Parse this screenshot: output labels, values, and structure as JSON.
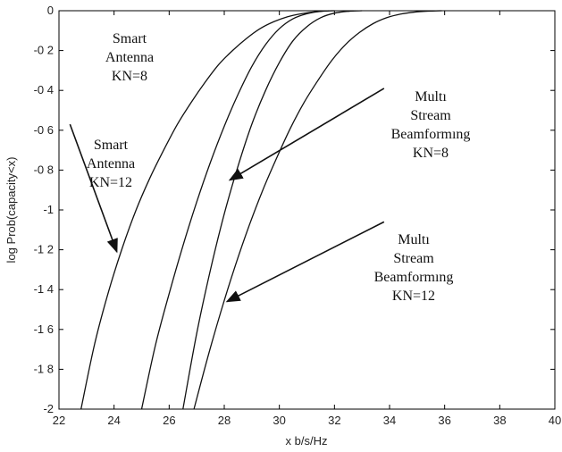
{
  "chart_data": {
    "type": "line",
    "xlabel": "x b/s/Hz",
    "ylabel": "log Prob(capacity<x)",
    "xlim": [
      22,
      40
    ],
    "ylim": [
      -2,
      0
    ],
    "x_ticks": [
      22,
      24,
      26,
      28,
      30,
      32,
      34,
      36,
      38,
      40
    ],
    "x_tick_labels": [
      "22",
      "24",
      "26",
      "28",
      "30",
      "32",
      "34",
      "36",
      "38",
      "40"
    ],
    "y_ticks": [
      0,
      -0.2,
      -0.4,
      -0.6,
      -0.8,
      -1,
      -1.2,
      -1.4,
      -1.6,
      -1.8,
      -2
    ],
    "y_tick_labels": [
      "0",
      "-0 2",
      "-0 4",
      "-0 6",
      "-0 8",
      "-1",
      "-1 2",
      "-1 4",
      "-1 6",
      "-1 8",
      "-2"
    ],
    "grid": false,
    "legend": "none",
    "series": [
      {
        "x": [
          22.8,
          23.3,
          23.8,
          24.3,
          24.8,
          25.3,
          25.8,
          26.3,
          26.8,
          27.3,
          27.8,
          28.3,
          28.8,
          29.3,
          29.8,
          30.3,
          30.8,
          31.3,
          31.8
        ],
        "y": [
          -2.0,
          -1.67,
          -1.41,
          -1.19,
          -1.0,
          -0.84,
          -0.7,
          -0.57,
          -0.46,
          -0.36,
          -0.27,
          -0.2,
          -0.14,
          -0.09,
          -0.055,
          -0.03,
          -0.015,
          -0.005,
          0.0
        ]
      },
      {
        "x": [
          25.0,
          25.5,
          26.0,
          26.5,
          27.0,
          27.5,
          28.0,
          28.5,
          29.0,
          29.5,
          30.0,
          30.5,
          31.0,
          31.5,
          32.0
        ],
        "y": [
          -2.0,
          -1.68,
          -1.42,
          -1.18,
          -0.96,
          -0.76,
          -0.58,
          -0.42,
          -0.28,
          -0.17,
          -0.09,
          -0.04,
          -0.015,
          -0.003,
          0.0
        ]
      },
      {
        "x": [
          26.5,
          27.0,
          27.5,
          28.0,
          28.5,
          29.0,
          29.5,
          30.0,
          30.5,
          31.0,
          31.5,
          32.0,
          32.5,
          33.0
        ],
        "y": [
          -2.0,
          -1.62,
          -1.3,
          -1.02,
          -0.78,
          -0.57,
          -0.4,
          -0.26,
          -0.15,
          -0.08,
          -0.035,
          -0.012,
          -0.003,
          0.0
        ]
      },
      {
        "x": [
          26.9,
          27.4,
          27.9,
          28.4,
          28.9,
          29.4,
          29.9,
          30.4,
          30.9,
          31.4,
          31.9,
          32.4,
          32.9,
          33.4,
          33.9,
          34.4,
          34.9,
          35.4,
          35.9
        ],
        "y": [
          -2.0,
          -1.74,
          -1.5,
          -1.28,
          -1.08,
          -0.9,
          -0.74,
          -0.59,
          -0.46,
          -0.35,
          -0.25,
          -0.17,
          -0.11,
          -0.065,
          -0.035,
          -0.017,
          -0.007,
          -0.002,
          0.0
        ]
      }
    ],
    "annotations": [
      {
        "lines": [
          "Smart",
          "Antenna",
          "KN=8"
        ]
      },
      {
        "lines": [
          "Smart",
          "Antenna",
          "KN=12"
        ]
      },
      {
        "lines": [
          "Multı",
          "Stream",
          "Beamformıng",
          "KN=8"
        ]
      },
      {
        "lines": [
          "Multı",
          "Stream",
          "Beamformıng",
          "KN=12"
        ]
      }
    ],
    "arrows": [
      {
        "from": [
          22.4,
          -0.57
        ],
        "to": [
          24.1,
          -1.21
        ]
      },
      {
        "from": [
          33.8,
          -0.39
        ],
        "to": [
          28.2,
          -0.85
        ]
      },
      {
        "from": [
          33.8,
          -1.06
        ],
        "to": [
          28.1,
          -1.46
        ]
      }
    ]
  }
}
